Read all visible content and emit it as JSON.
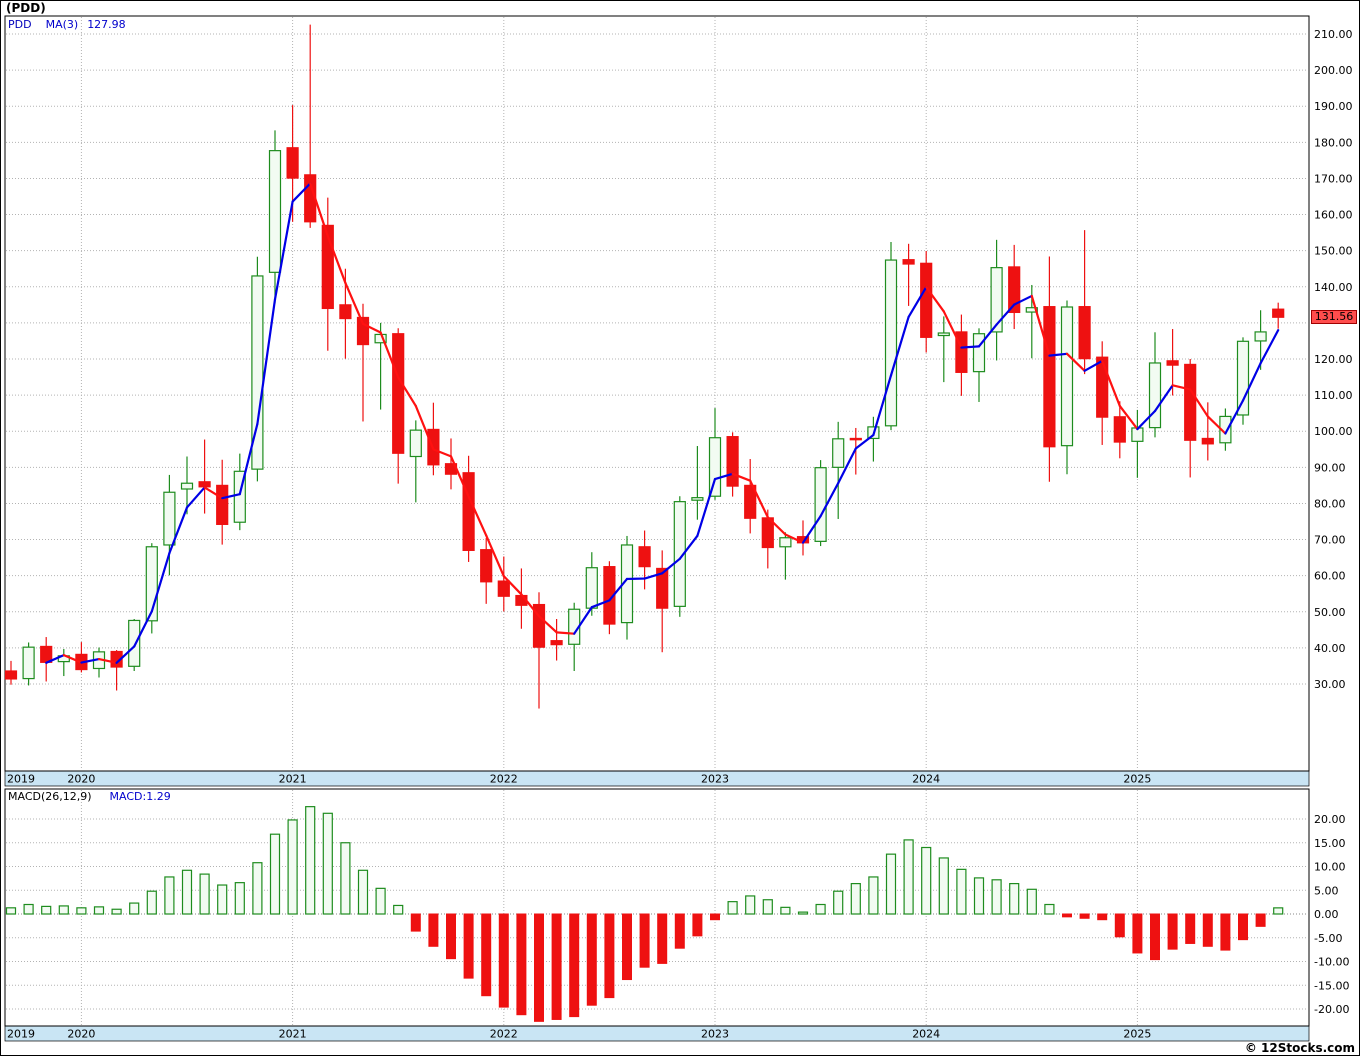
{
  "title": "(PDD)",
  "watermark": "© 12Stocks.com",
  "main_chart": {
    "legend": {
      "symbol": "PDD",
      "ma_label": "MA(3)",
      "ma_value": "127.98"
    },
    "last_price_label": "131.56",
    "y_axis": {
      "min": 30,
      "max": 210,
      "step": 10
    }
  },
  "macd_chart": {
    "legend": {
      "label": "MACD(26,12,9)",
      "value_label": "MACD:1.29"
    },
    "y_axis": {
      "min": -20,
      "max": 20,
      "step": 5
    }
  },
  "x_axis": {
    "years": [
      {
        "label": "2019",
        "index": 0
      },
      {
        "label": "2020",
        "index": 4
      },
      {
        "label": "2021",
        "index": 16
      },
      {
        "label": "2022",
        "index": 28
      },
      {
        "label": "2023",
        "index": 40
      },
      {
        "label": "2024",
        "index": 52
      },
      {
        "label": "2025",
        "index": 64
      }
    ]
  },
  "colors": {
    "up": "#1e8c1e",
    "up_fill": "#f2fbf2",
    "down": "#ee1111",
    "ma_up": "#0000e6",
    "ma_down": "#ff1111",
    "grid": "#b3b3b3",
    "band": "#c9e5f4",
    "badge": "#ff4d4d",
    "blue_text": "#0000cc"
  },
  "chart_data": [
    {
      "type": "candlestick",
      "title": "PDD monthly price with MA(3)",
      "x_unit": "month",
      "ma_period": 3,
      "ylim": [
        30,
        210
      ],
      "ohlc": [
        {
          "d": "2019-09",
          "o": 33.6,
          "h": 36.4,
          "l": 29.8,
          "c": 31.4
        },
        {
          "d": "2019-10",
          "o": 31.5,
          "h": 41.5,
          "l": 29.6,
          "c": 40.2
        },
        {
          "d": "2019-11",
          "o": 40.4,
          "h": 43.0,
          "l": 30.7,
          "c": 36.0
        },
        {
          "d": "2019-12",
          "o": 36.2,
          "h": 39.7,
          "l": 32.2,
          "c": 37.8
        },
        {
          "d": "2020-01",
          "o": 38.2,
          "h": 41.6,
          "l": 33.2,
          "c": 34.0
        },
        {
          "d": "2020-02",
          "o": 34.3,
          "h": 40.1,
          "l": 31.8,
          "c": 38.9
        },
        {
          "d": "2020-03",
          "o": 39.0,
          "h": 39.4,
          "l": 28.2,
          "c": 34.7
        },
        {
          "d": "2020-04",
          "o": 34.9,
          "h": 48.0,
          "l": 33.6,
          "c": 47.6
        },
        {
          "d": "2020-05",
          "o": 47.5,
          "h": 69.0,
          "l": 44.0,
          "c": 68.0
        },
        {
          "d": "2020-06",
          "o": 68.5,
          "h": 87.9,
          "l": 60.1,
          "c": 83.1
        },
        {
          "d": "2020-07",
          "o": 84.0,
          "h": 93.0,
          "l": 77.0,
          "c": 85.6
        },
        {
          "d": "2020-08",
          "o": 86.0,
          "h": 97.7,
          "l": 77.2,
          "c": 84.6
        },
        {
          "d": "2020-09",
          "o": 85.0,
          "h": 92.1,
          "l": 68.6,
          "c": 74.2
        },
        {
          "d": "2020-10",
          "o": 74.8,
          "h": 93.8,
          "l": 72.6,
          "c": 88.9
        },
        {
          "d": "2020-11",
          "o": 89.5,
          "h": 148.3,
          "l": 86.1,
          "c": 143.0
        },
        {
          "d": "2020-12",
          "o": 144.0,
          "h": 183.3,
          "l": 135.4,
          "c": 177.7
        },
        {
          "d": "2021-01",
          "o": 178.5,
          "h": 190.3,
          "l": 158.0,
          "c": 170.1
        },
        {
          "d": "2021-02",
          "o": 171.0,
          "h": 212.6,
          "l": 156.3,
          "c": 158.0
        },
        {
          "d": "2021-03",
          "o": 157.0,
          "h": 164.7,
          "l": 122.3,
          "c": 134.0
        },
        {
          "d": "2021-04",
          "o": 135.0,
          "h": 145.0,
          "l": 120.1,
          "c": 131.2
        },
        {
          "d": "2021-05",
          "o": 131.5,
          "h": 135.3,
          "l": 102.7,
          "c": 124.0
        },
        {
          "d": "2021-06",
          "o": 124.5,
          "h": 130.0,
          "l": 106.0,
          "c": 126.8
        },
        {
          "d": "2021-07",
          "o": 127.0,
          "h": 128.5,
          "l": 85.5,
          "c": 93.9
        },
        {
          "d": "2021-08",
          "o": 93.0,
          "h": 103.0,
          "l": 80.3,
          "c": 100.3
        },
        {
          "d": "2021-09",
          "o": 100.5,
          "h": 107.9,
          "l": 87.8,
          "c": 90.7
        },
        {
          "d": "2021-10",
          "o": 91.0,
          "h": 98.0,
          "l": 83.9,
          "c": 88.1
        },
        {
          "d": "2021-11",
          "o": 88.5,
          "h": 93.2,
          "l": 63.8,
          "c": 67.0
        },
        {
          "d": "2021-12",
          "o": 67.2,
          "h": 70.4,
          "l": 52.2,
          "c": 58.3
        },
        {
          "d": "2022-01",
          "o": 58.5,
          "h": 65.3,
          "l": 50.1,
          "c": 54.3
        },
        {
          "d": "2022-02",
          "o": 54.5,
          "h": 62.0,
          "l": 45.3,
          "c": 51.8
        },
        {
          "d": "2022-03",
          "o": 52.0,
          "h": 55.4,
          "l": 23.2,
          "c": 40.2
        },
        {
          "d": "2022-04",
          "o": 42.0,
          "h": 48.0,
          "l": 36.5,
          "c": 40.9
        },
        {
          "d": "2022-05",
          "o": 41.0,
          "h": 52.5,
          "l": 33.6,
          "c": 50.7
        },
        {
          "d": "2022-06",
          "o": 51.0,
          "h": 66.5,
          "l": 48.9,
          "c": 62.2
        },
        {
          "d": "2022-07",
          "o": 62.5,
          "h": 64.0,
          "l": 43.8,
          "c": 46.6
        },
        {
          "d": "2022-08",
          "o": 47.0,
          "h": 71.0,
          "l": 42.3,
          "c": 68.5
        },
        {
          "d": "2022-09",
          "o": 68.0,
          "h": 72.5,
          "l": 56.2,
          "c": 62.5
        },
        {
          "d": "2022-10",
          "o": 62.0,
          "h": 67.0,
          "l": 38.8,
          "c": 51.0
        },
        {
          "d": "2022-11",
          "o": 51.5,
          "h": 82.0,
          "l": 48.6,
          "c": 80.5
        },
        {
          "d": "2022-12",
          "o": 80.9,
          "h": 95.9,
          "l": 75.5,
          "c": 81.6
        },
        {
          "d": "2023-01",
          "o": 82.0,
          "h": 106.4,
          "l": 81.0,
          "c": 98.2
        },
        {
          "d": "2023-02",
          "o": 98.5,
          "h": 99.7,
          "l": 81.9,
          "c": 84.8
        },
        {
          "d": "2023-03",
          "o": 85.0,
          "h": 92.3,
          "l": 71.7,
          "c": 75.9
        },
        {
          "d": "2023-04",
          "o": 76.0,
          "h": 78.3,
          "l": 62.0,
          "c": 67.8
        },
        {
          "d": "2023-05",
          "o": 68.0,
          "h": 72.0,
          "l": 58.9,
          "c": 70.5
        },
        {
          "d": "2023-06",
          "o": 70.8,
          "h": 75.3,
          "l": 65.6,
          "c": 69.1
        },
        {
          "d": "2023-07",
          "o": 69.5,
          "h": 92.0,
          "l": 68.2,
          "c": 89.9
        },
        {
          "d": "2023-08",
          "o": 90.0,
          "h": 102.6,
          "l": 75.7,
          "c": 97.9
        },
        {
          "d": "2023-09",
          "o": 98.0,
          "h": 100.9,
          "l": 88.0,
          "c": 97.8
        },
        {
          "d": "2023-10",
          "o": 98.0,
          "h": 104.0,
          "l": 91.6,
          "c": 101.2
        },
        {
          "d": "2023-11",
          "o": 101.5,
          "h": 152.4,
          "l": 100.3,
          "c": 147.4
        },
        {
          "d": "2023-12",
          "o": 147.5,
          "h": 151.9,
          "l": 134.7,
          "c": 146.3
        },
        {
          "d": "2024-01",
          "o": 146.5,
          "h": 149.9,
          "l": 121.8,
          "c": 126.0
        },
        {
          "d": "2024-02",
          "o": 126.5,
          "h": 131.8,
          "l": 113.6,
          "c": 127.2
        },
        {
          "d": "2024-03",
          "o": 127.5,
          "h": 132.3,
          "l": 109.8,
          "c": 116.3
        },
        {
          "d": "2024-04",
          "o": 116.5,
          "h": 128.5,
          "l": 108.1,
          "c": 127.0
        },
        {
          "d": "2024-05",
          "o": 127.5,
          "h": 153.0,
          "l": 119.6,
          "c": 145.3
        },
        {
          "d": "2024-06",
          "o": 145.5,
          "h": 151.6,
          "l": 128.3,
          "c": 132.9
        },
        {
          "d": "2024-07",
          "o": 133.0,
          "h": 140.5,
          "l": 120.2,
          "c": 134.2
        },
        {
          "d": "2024-08",
          "o": 134.5,
          "h": 148.4,
          "l": 86.0,
          "c": 95.7
        },
        {
          "d": "2024-09",
          "o": 96.0,
          "h": 136.2,
          "l": 88.1,
          "c": 134.4
        },
        {
          "d": "2024-10",
          "o": 134.5,
          "h": 155.7,
          "l": 115.8,
          "c": 120.1
        },
        {
          "d": "2024-11",
          "o": 120.5,
          "h": 124.9,
          "l": 96.2,
          "c": 103.9
        },
        {
          "d": "2024-12",
          "o": 104.0,
          "h": 108.3,
          "l": 92.5,
          "c": 97.0
        },
        {
          "d": "2025-01",
          "o": 97.2,
          "h": 105.9,
          "l": 87.1,
          "c": 100.9
        },
        {
          "d": "2025-02",
          "o": 101.0,
          "h": 127.4,
          "l": 98.3,
          "c": 118.9
        },
        {
          "d": "2025-03",
          "o": 119.5,
          "h": 128.3,
          "l": 109.9,
          "c": 118.3
        },
        {
          "d": "2025-04",
          "o": 118.5,
          "h": 120.0,
          "l": 87.2,
          "c": 97.5
        },
        {
          "d": "2025-05",
          "o": 98.0,
          "h": 108.0,
          "l": 91.9,
          "c": 96.5
        },
        {
          "d": "2025-06",
          "o": 96.8,
          "h": 106.3,
          "l": 94.6,
          "c": 104.1
        },
        {
          "d": "2025-07",
          "o": 104.5,
          "h": 126.0,
          "l": 101.8,
          "c": 124.9
        },
        {
          "d": "2025-08",
          "o": 125.0,
          "h": 133.5,
          "l": 117.0,
          "c": 127.5
        },
        {
          "d": "2025-09",
          "o": 133.8,
          "h": 135.6,
          "l": 128.4,
          "c": 131.56
        }
      ]
    },
    {
      "type": "bar",
      "title": "MACD(26,12,9) histogram",
      "ylim": [
        -20,
        20
      ],
      "current_value": 1.29,
      "values": [
        1.3,
        2.0,
        1.6,
        1.7,
        1.3,
        1.5,
        1.0,
        2.3,
        4.8,
        7.8,
        9.2,
        8.4,
        6.1,
        6.6,
        10.8,
        16.8,
        19.8,
        22.6,
        21.2,
        15.0,
        9.2,
        5.4,
        1.8,
        -3.6,
        -6.8,
        -9.4,
        -13.5,
        -17.2,
        -19.6,
        -21.2,
        -22.6,
        -22.2,
        -21.6,
        -19.2,
        -17.6,
        -13.8,
        -11.2,
        -10.4,
        -7.2,
        -4.6,
        -1.2,
        2.6,
        3.8,
        3.0,
        1.4,
        0.4,
        2.0,
        4.8,
        6.4,
        7.8,
        12.6,
        15.6,
        14.0,
        11.8,
        9.4,
        7.6,
        7.2,
        6.4,
        5.2,
        2.0,
        -0.6,
        -0.9,
        -1.2,
        -4.8,
        -8.2,
        -9.6,
        -7.4,
        -6.2,
        -6.8,
        -7.6,
        -5.4,
        -2.6,
        1.29
      ]
    }
  ]
}
